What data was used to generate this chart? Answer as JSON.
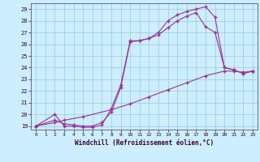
{
  "bg_color": "#cceeff",
  "grid_color": "#99cccc",
  "line_color": "#993399",
  "xlabel": "Windchill (Refroidissement éolien,°C)",
  "xlim": [
    -0.5,
    23.5
  ],
  "ylim": [
    18.7,
    29.5
  ],
  "yticks": [
    19,
    20,
    21,
    22,
    23,
    24,
    25,
    26,
    27,
    28,
    29
  ],
  "xticks": [
    0,
    1,
    2,
    3,
    4,
    5,
    6,
    7,
    8,
    9,
    10,
    11,
    12,
    13,
    14,
    15,
    16,
    17,
    18,
    19,
    20,
    21,
    22,
    23
  ],
  "line1_x": [
    0,
    2,
    3,
    4,
    5,
    6,
    7,
    8,
    9,
    10,
    11,
    12,
    13,
    14,
    15,
    16,
    17,
    18,
    19,
    20,
    21,
    22,
    23
  ],
  "line1_y": [
    19.0,
    20.0,
    19.0,
    19.0,
    18.9,
    18.9,
    19.1,
    20.5,
    22.5,
    26.3,
    26.3,
    26.5,
    27.0,
    28.0,
    28.5,
    28.8,
    29.0,
    29.2,
    28.3,
    24.0,
    23.8,
    23.5,
    23.7
  ],
  "line2_x": [
    0,
    2,
    3,
    4,
    5,
    6,
    7,
    8,
    9,
    10,
    11,
    12,
    13,
    14,
    15,
    16,
    17,
    18,
    19,
    20,
    21,
    22,
    23
  ],
  "line2_y": [
    19.0,
    19.5,
    19.2,
    19.1,
    19.0,
    19.0,
    19.3,
    20.2,
    22.3,
    26.2,
    26.3,
    26.5,
    26.8,
    27.4,
    28.0,
    28.4,
    28.7,
    27.5,
    27.0,
    24.0,
    23.8,
    23.5,
    23.7
  ],
  "line3_x": [
    0,
    2,
    3,
    5,
    8,
    10,
    12,
    14,
    16,
    18,
    20,
    21,
    22,
    23
  ],
  "line3_y": [
    19.0,
    19.3,
    19.5,
    19.8,
    20.4,
    20.9,
    21.5,
    22.1,
    22.7,
    23.3,
    23.7,
    23.7,
    23.6,
    23.7
  ]
}
